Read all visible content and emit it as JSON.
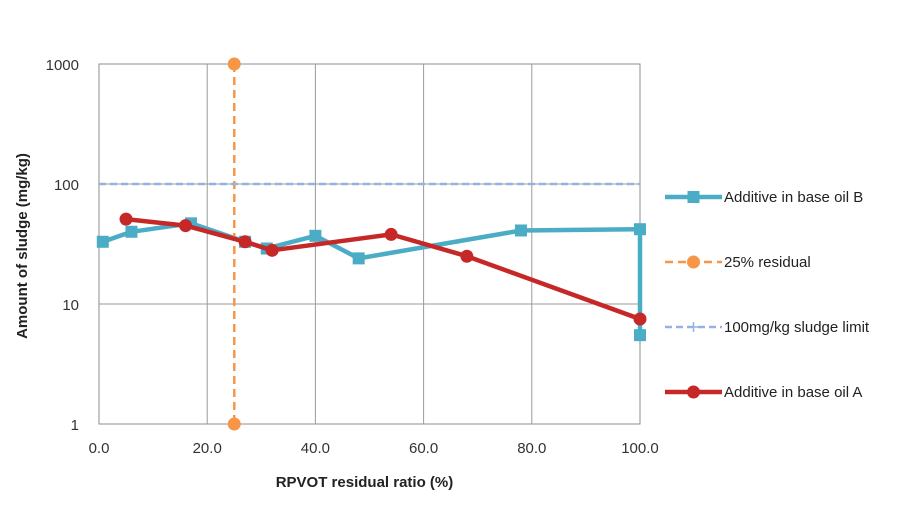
{
  "chart_data": {
    "type": "line",
    "xlabel": "RPVOT residual ratio (%)",
    "ylabel": "Amount of sludge (mg/kg)",
    "xlim": [
      0,
      100
    ],
    "ylim": [
      1,
      1000
    ],
    "yscale": "log",
    "x_ticks": [
      "0.0",
      "20.0",
      "40.0",
      "60.0",
      "80.0",
      "100.0"
    ],
    "y_ticks": [
      "1",
      "10",
      "100",
      "1000"
    ],
    "grid": "vertical-and-horizontal",
    "legend_position": "right",
    "series": [
      {
        "name": "Additive in base oil B",
        "color": "#4bacc6",
        "marker": "square",
        "dash": "solid",
        "points": [
          [
            0.7,
            33
          ],
          [
            6,
            40
          ],
          [
            17,
            47
          ],
          [
            27,
            33
          ],
          [
            31,
            29
          ],
          [
            40,
            37
          ],
          [
            48,
            24
          ],
          [
            78,
            41
          ],
          [
            100,
            42
          ],
          [
            100,
            5.5
          ]
        ]
      },
      {
        "name": "25% residual",
        "color": "#f79646",
        "marker": "circle",
        "dash": "dashed",
        "points": [
          [
            25,
            1000
          ],
          [
            25,
            1
          ]
        ]
      },
      {
        "name": "100mg/kg sludge limit",
        "color": "#95b3e0",
        "marker": "cross",
        "dash": "dashed",
        "points": [
          [
            0,
            100
          ],
          [
            100,
            100
          ]
        ]
      },
      {
        "name": "Additive in base oil A",
        "color": "#c62828",
        "marker": "circle",
        "dash": "solid",
        "points": [
          [
            5,
            51
          ],
          [
            16,
            45
          ],
          [
            27,
            33
          ],
          [
            32,
            28
          ],
          [
            54,
            38
          ],
          [
            68,
            25
          ],
          [
            100,
            7.5
          ]
        ]
      }
    ]
  }
}
